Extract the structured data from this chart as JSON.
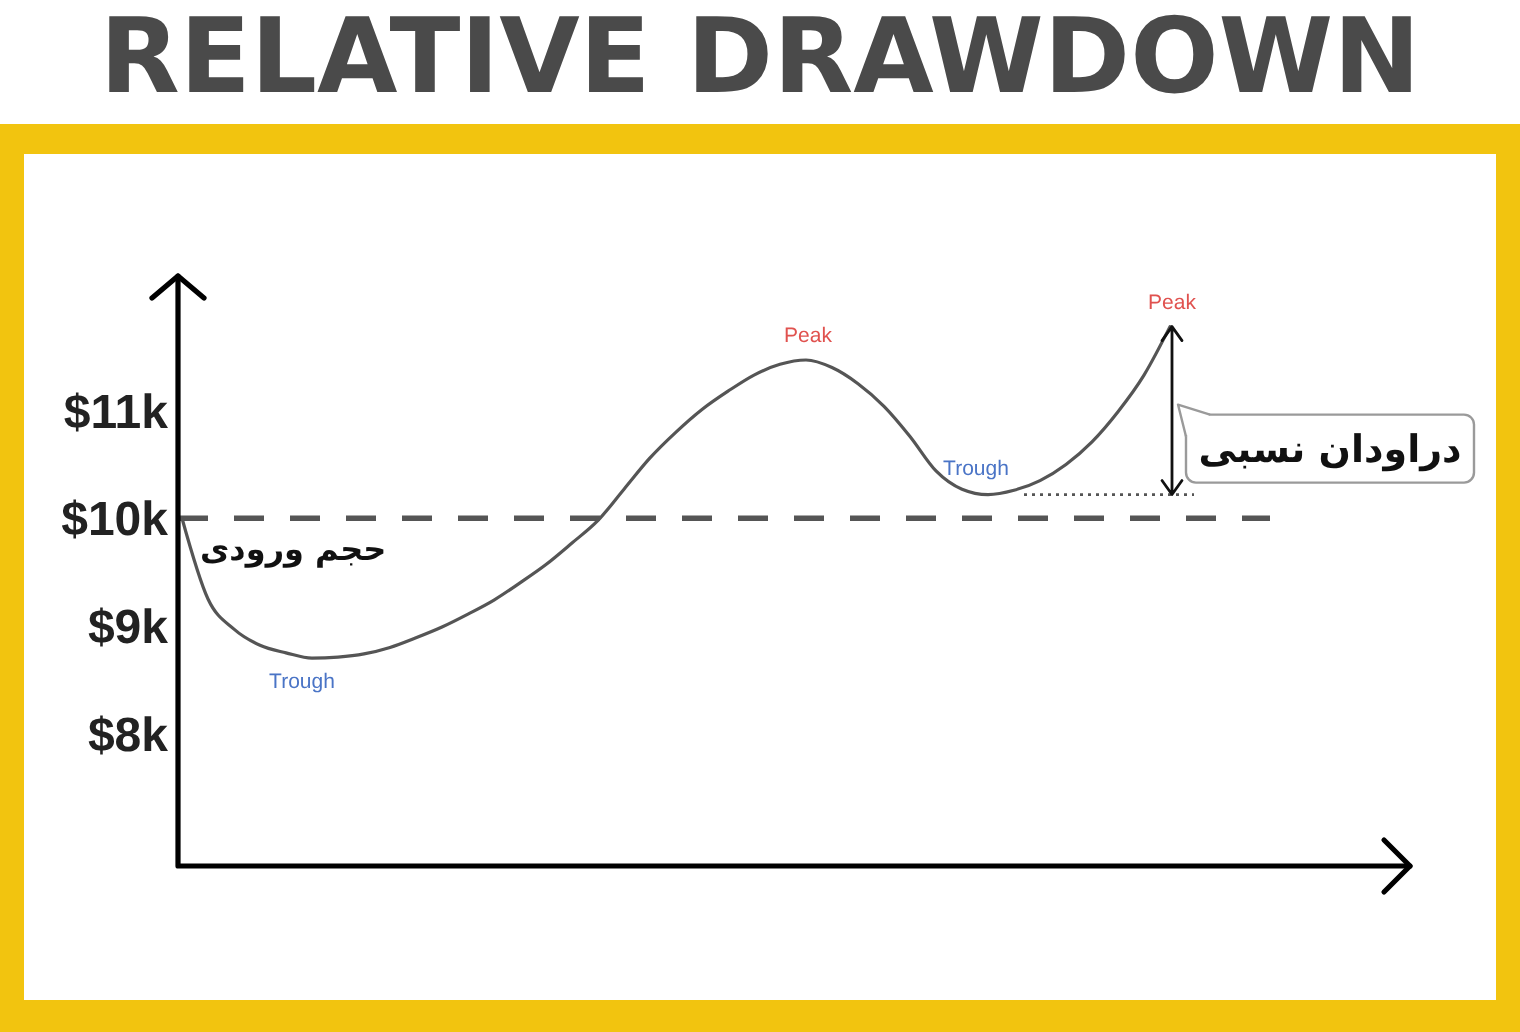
{
  "chart_data": {
    "type": "line",
    "title": "RELATIVE DRAWDOWN",
    "categories": [
      null,
      null,
      null,
      null,
      null,
      null,
      null,
      null,
      null,
      null,
      null,
      null,
      null,
      null,
      null,
      null,
      null,
      null,
      null,
      null,
      null,
      null,
      null,
      null,
      null,
      null,
      null,
      null,
      null,
      null,
      null,
      null,
      null,
      null,
      null,
      null,
      null,
      null,
      null
    ],
    "series": [
      {
        "color": "#555555",
        "values": [
          10000,
          9250,
          8970,
          8820,
          8750,
          8700,
          8710,
          8740,
          8800,
          8890,
          8990,
          9110,
          9240,
          9400,
          9570,
          9770,
          9980,
          10270,
          10560,
          10800,
          11010,
          11180,
          11330,
          11430,
          11470,
          11400,
          11250,
          11040,
          10760,
          10440,
          10270,
          10220,
          10260,
          10350,
          10500,
          10710,
          10990,
          11330,
          11780
        ]
      }
    ],
    "ylim": [
      6770,
      12250
    ],
    "yticks": [
      {
        "value": 8000,
        "label": "$8k"
      },
      {
        "value": 9000,
        "label": "$9k"
      },
      {
        "value": 10000,
        "label": "$10k"
      },
      {
        "value": 11000,
        "label": "$11k"
      }
    ],
    "line_style": "solid",
    "ref_lines": [
      {
        "axis": "y",
        "value": 10000,
        "label": "حجم ورودی",
        "color": "#555555",
        "line_style": "dashed"
      }
    ],
    "annotations": [
      {
        "text": "Trough",
        "y": 8700
      },
      {
        "text": "Peak",
        "y": 11470
      },
      {
        "text": "Trough",
        "y": 10220
      },
      {
        "text": "Peak",
        "y": 11780
      },
      "دراودان نسبی"
    ]
  }
}
